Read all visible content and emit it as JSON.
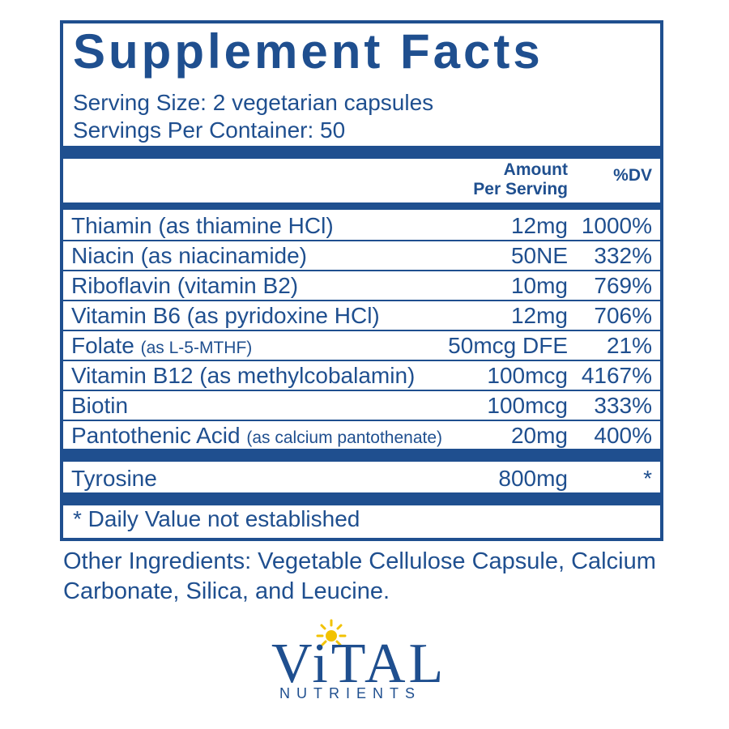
{
  "panel": {
    "title": "Supplement Facts",
    "serving_size": "Serving Size: 2 vegetarian capsules",
    "servings_per_container": "Servings Per Container: 50",
    "col_amount_line1": "Amount",
    "col_amount_line2": "Per Serving",
    "col_dv": "%DV",
    "rows": [
      {
        "name": "Thiamin (as thiamine HCl)",
        "note": "",
        "amount": "12mg",
        "dv": "1000%"
      },
      {
        "name": "Niacin (as niacinamide)",
        "note": "",
        "amount": "50NE",
        "dv": "332%"
      },
      {
        "name": "Riboflavin (vitamin B2)",
        "note": "",
        "amount": "10mg",
        "dv": "769%"
      },
      {
        "name": "Vitamin B6 (as pyridoxine HCl)",
        "note": "",
        "amount": "12mg",
        "dv": "706%"
      },
      {
        "name": "Folate",
        "note": "(as L-5-MTHF)",
        "amount": "50mcg DFE",
        "dv": "21%"
      },
      {
        "name": "Vitamin B12 (as methylcobalamin)",
        "note": "",
        "amount": "100mcg",
        "dv": "4167%"
      },
      {
        "name": "Biotin",
        "note": "",
        "amount": "100mcg",
        "dv": "333%"
      },
      {
        "name": "Pantothenic Acid",
        "note": "(as calcium pantothenate)",
        "amount": "20mg",
        "dv": "400%"
      }
    ],
    "extra_row": {
      "name": "Tyrosine",
      "amount": "800mg",
      "dv": "*"
    },
    "footnote": "* Daily Value not established"
  },
  "other_ingredients": "Other Ingredients: Vegetable Cellulose Capsule, Calcium Carbonate, Silica, and Leucine.",
  "logo": {
    "word": "ViTAL",
    "sub": "NUTRIENTS",
    "icon": "sun-icon"
  },
  "colors": {
    "brand_blue": "#1f4f8f",
    "sun_yellow": "#f2c200",
    "background": "#ffffff"
  }
}
